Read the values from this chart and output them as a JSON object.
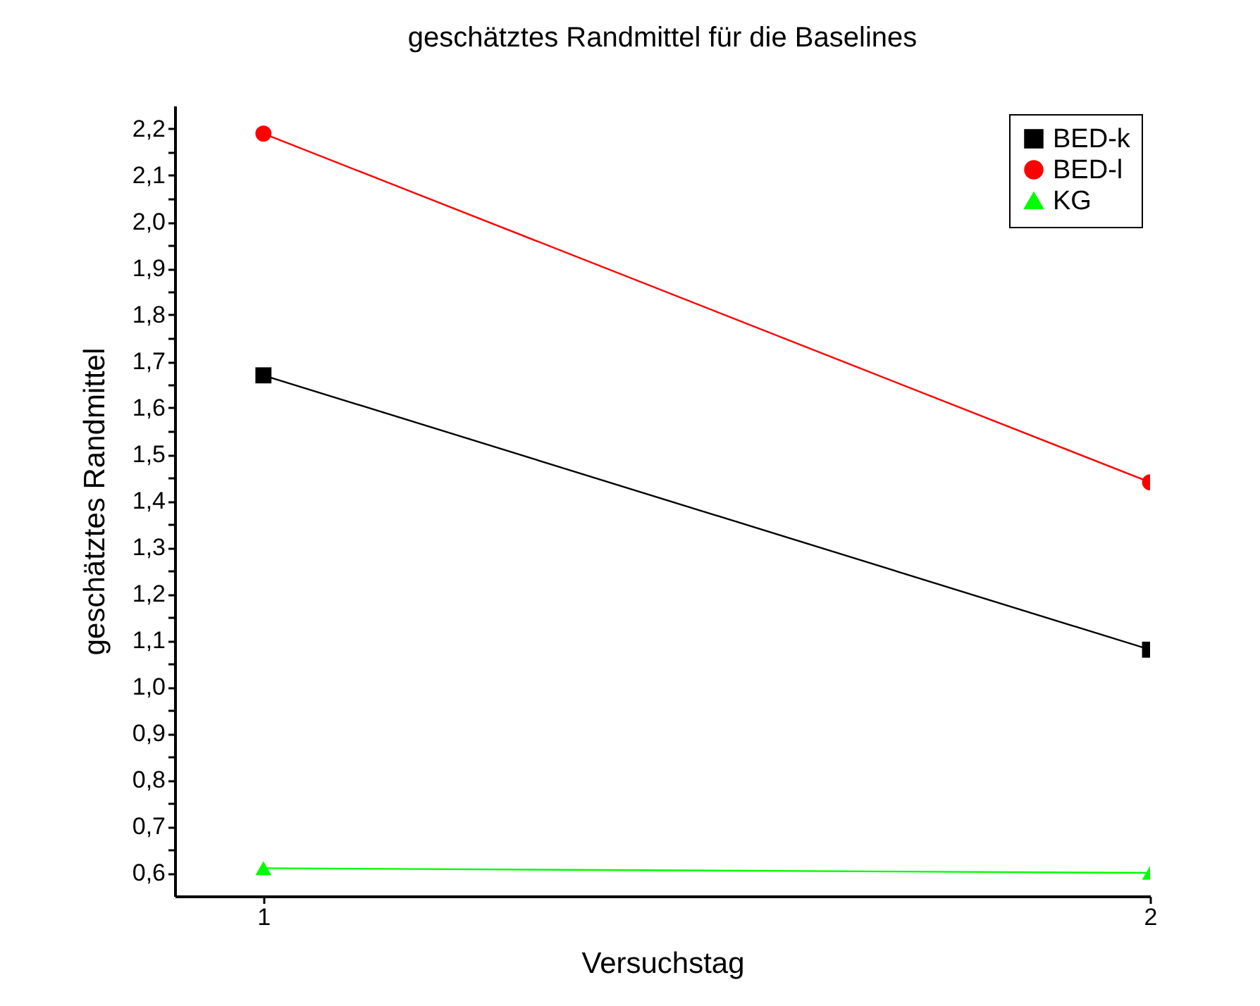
{
  "chart_data": {
    "type": "line",
    "title": "geschätztes Randmittel für die Baselines",
    "xlabel": "Versuchstag",
    "ylabel": "geschätztes Randmittel",
    "x": [
      1,
      2
    ],
    "series": [
      {
        "name": "BED-k",
        "color": "#000000",
        "marker": "square",
        "values": [
          1.67,
          1.08
        ]
      },
      {
        "name": "BED-l",
        "color": "#ff0000",
        "marker": "circle",
        "values": [
          2.19,
          1.44
        ]
      },
      {
        "name": "KG",
        "color": "#00ff00",
        "marker": "triangle",
        "values": [
          0.61,
          0.6
        ]
      }
    ],
    "xlim": [
      0.9,
      2.0
    ],
    "xticks": [
      1,
      2
    ],
    "ylim": [
      0.55,
      2.25
    ],
    "yticks": [
      {
        "value": 0.6,
        "label": "0,6"
      },
      {
        "value": 0.65,
        "label": null
      },
      {
        "value": 0.7,
        "label": "0,7"
      },
      {
        "value": 0.75,
        "label": null
      },
      {
        "value": 0.8,
        "label": "0,8"
      },
      {
        "value": 0.85,
        "label": null
      },
      {
        "value": 0.9,
        "label": "0,9"
      },
      {
        "value": 0.95,
        "label": null
      },
      {
        "value": 1.0,
        "label": "1,0"
      },
      {
        "value": 1.05,
        "label": null
      },
      {
        "value": 1.1,
        "label": "1,1"
      },
      {
        "value": 1.15,
        "label": null
      },
      {
        "value": 1.2,
        "label": "1,2"
      },
      {
        "value": 1.25,
        "label": null
      },
      {
        "value": 1.3,
        "label": "1,3"
      },
      {
        "value": 1.35,
        "label": null
      },
      {
        "value": 1.4,
        "label": "1,4"
      },
      {
        "value": 1.45,
        "label": null
      },
      {
        "value": 1.5,
        "label": "1,5"
      },
      {
        "value": 1.55,
        "label": null
      },
      {
        "value": 1.6,
        "label": "1,6"
      },
      {
        "value": 1.65,
        "label": null
      },
      {
        "value": 1.7,
        "label": "1,7"
      },
      {
        "value": 1.75,
        "label": null
      },
      {
        "value": 1.8,
        "label": "1,8"
      },
      {
        "value": 1.85,
        "label": null
      },
      {
        "value": 1.9,
        "label": "1,9"
      },
      {
        "value": 1.95,
        "label": null
      },
      {
        "value": 2.0,
        "label": "2,0"
      },
      {
        "value": 2.05,
        "label": null
      },
      {
        "value": 2.1,
        "label": "2,1"
      },
      {
        "value": 2.15,
        "label": null
      },
      {
        "value": 2.2,
        "label": "2,2"
      }
    ],
    "grid": false,
    "legend": "top right",
    "line_style": "solid"
  }
}
